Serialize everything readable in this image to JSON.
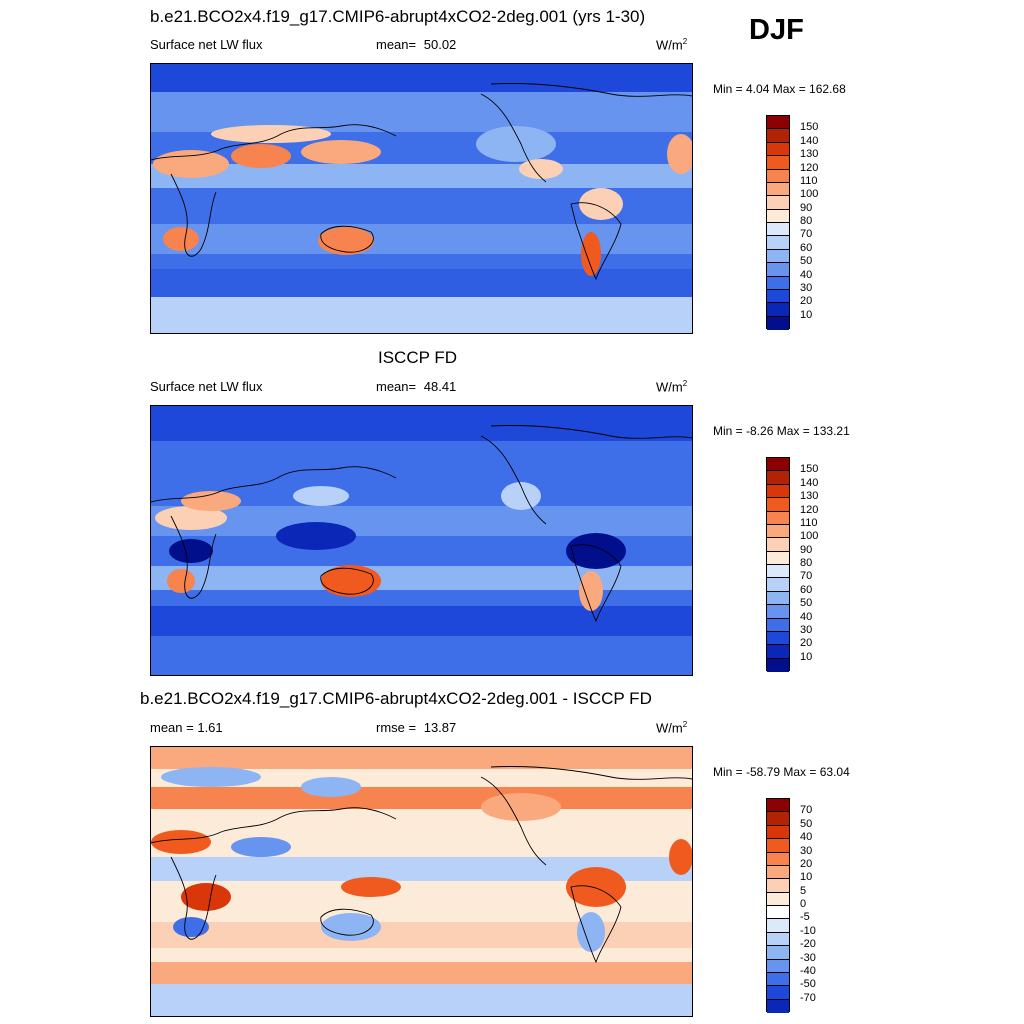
{
  "season": "DJF",
  "panels": [
    {
      "title": "b.e21.BCO2x4.f19_g17.CMIP6-abrupt4xCO2-2deg.001 (yrs 1-30)",
      "variable": "Surface net LW flux",
      "stat_label": "mean=",
      "stat_value": "50.02",
      "units_base": "W/m",
      "units_exp": "2",
      "minmax": "Min =   4.04 Max = 162.68",
      "levels": [
        "150",
        "140",
        "130",
        "120",
        "110",
        "100",
        "90",
        "80",
        "70",
        "60",
        "50",
        "40",
        "30",
        "20",
        "10"
      ]
    },
    {
      "title": "ISCCP FD",
      "variable": "Surface net LW flux",
      "stat_label": "mean=",
      "stat_value": "48.41",
      "units_base": "W/m",
      "units_exp": "2",
      "minmax": "Min =  -8.26 Max = 133.21",
      "levels": [
        "150",
        "140",
        "130",
        "120",
        "110",
        "100",
        "90",
        "80",
        "70",
        "60",
        "50",
        "40",
        "30",
        "20",
        "10"
      ]
    },
    {
      "title": "b.e21.BCO2x4.f19_g17.CMIP6-abrupt4xCO2-2deg.001 - ISCCP FD",
      "variable": "mean =   1.61",
      "stat_label": "rmse =",
      "stat_value": "13.87",
      "units_base": "W/m",
      "units_exp": "2",
      "minmax": "Min = -58.79 Max =  63.04",
      "levels": [
        "70",
        "50",
        "40",
        "30",
        "20",
        "10",
        "5",
        "0",
        "-5",
        "-10",
        "-20",
        "-30",
        "-40",
        "-50",
        "-70"
      ]
    }
  ],
  "colors": {
    "abs_scale": [
      "#8b0000",
      "#b22205",
      "#d9360a",
      "#f05a1e",
      "#f7844f",
      "#f9a97d",
      "#fbd0b4",
      "#fdebd9",
      "#dce9fb",
      "#b7d1f8",
      "#8db4f3",
      "#6694ef",
      "#3f6fe8",
      "#1d48d9",
      "#0a27b8",
      "#020f8c"
    ],
    "diff_scale": [
      "#8b0000",
      "#b22205",
      "#d9360a",
      "#f05a1e",
      "#f7844f",
      "#f9a97d",
      "#fbd0b4",
      "#fdebd9",
      "#ffffff",
      "#dce9fb",
      "#b7d1f8",
      "#8db4f3",
      "#6694ef",
      "#3f6fe8",
      "#1d48d9",
      "#0a27b8",
      "#020f8c"
    ]
  }
}
